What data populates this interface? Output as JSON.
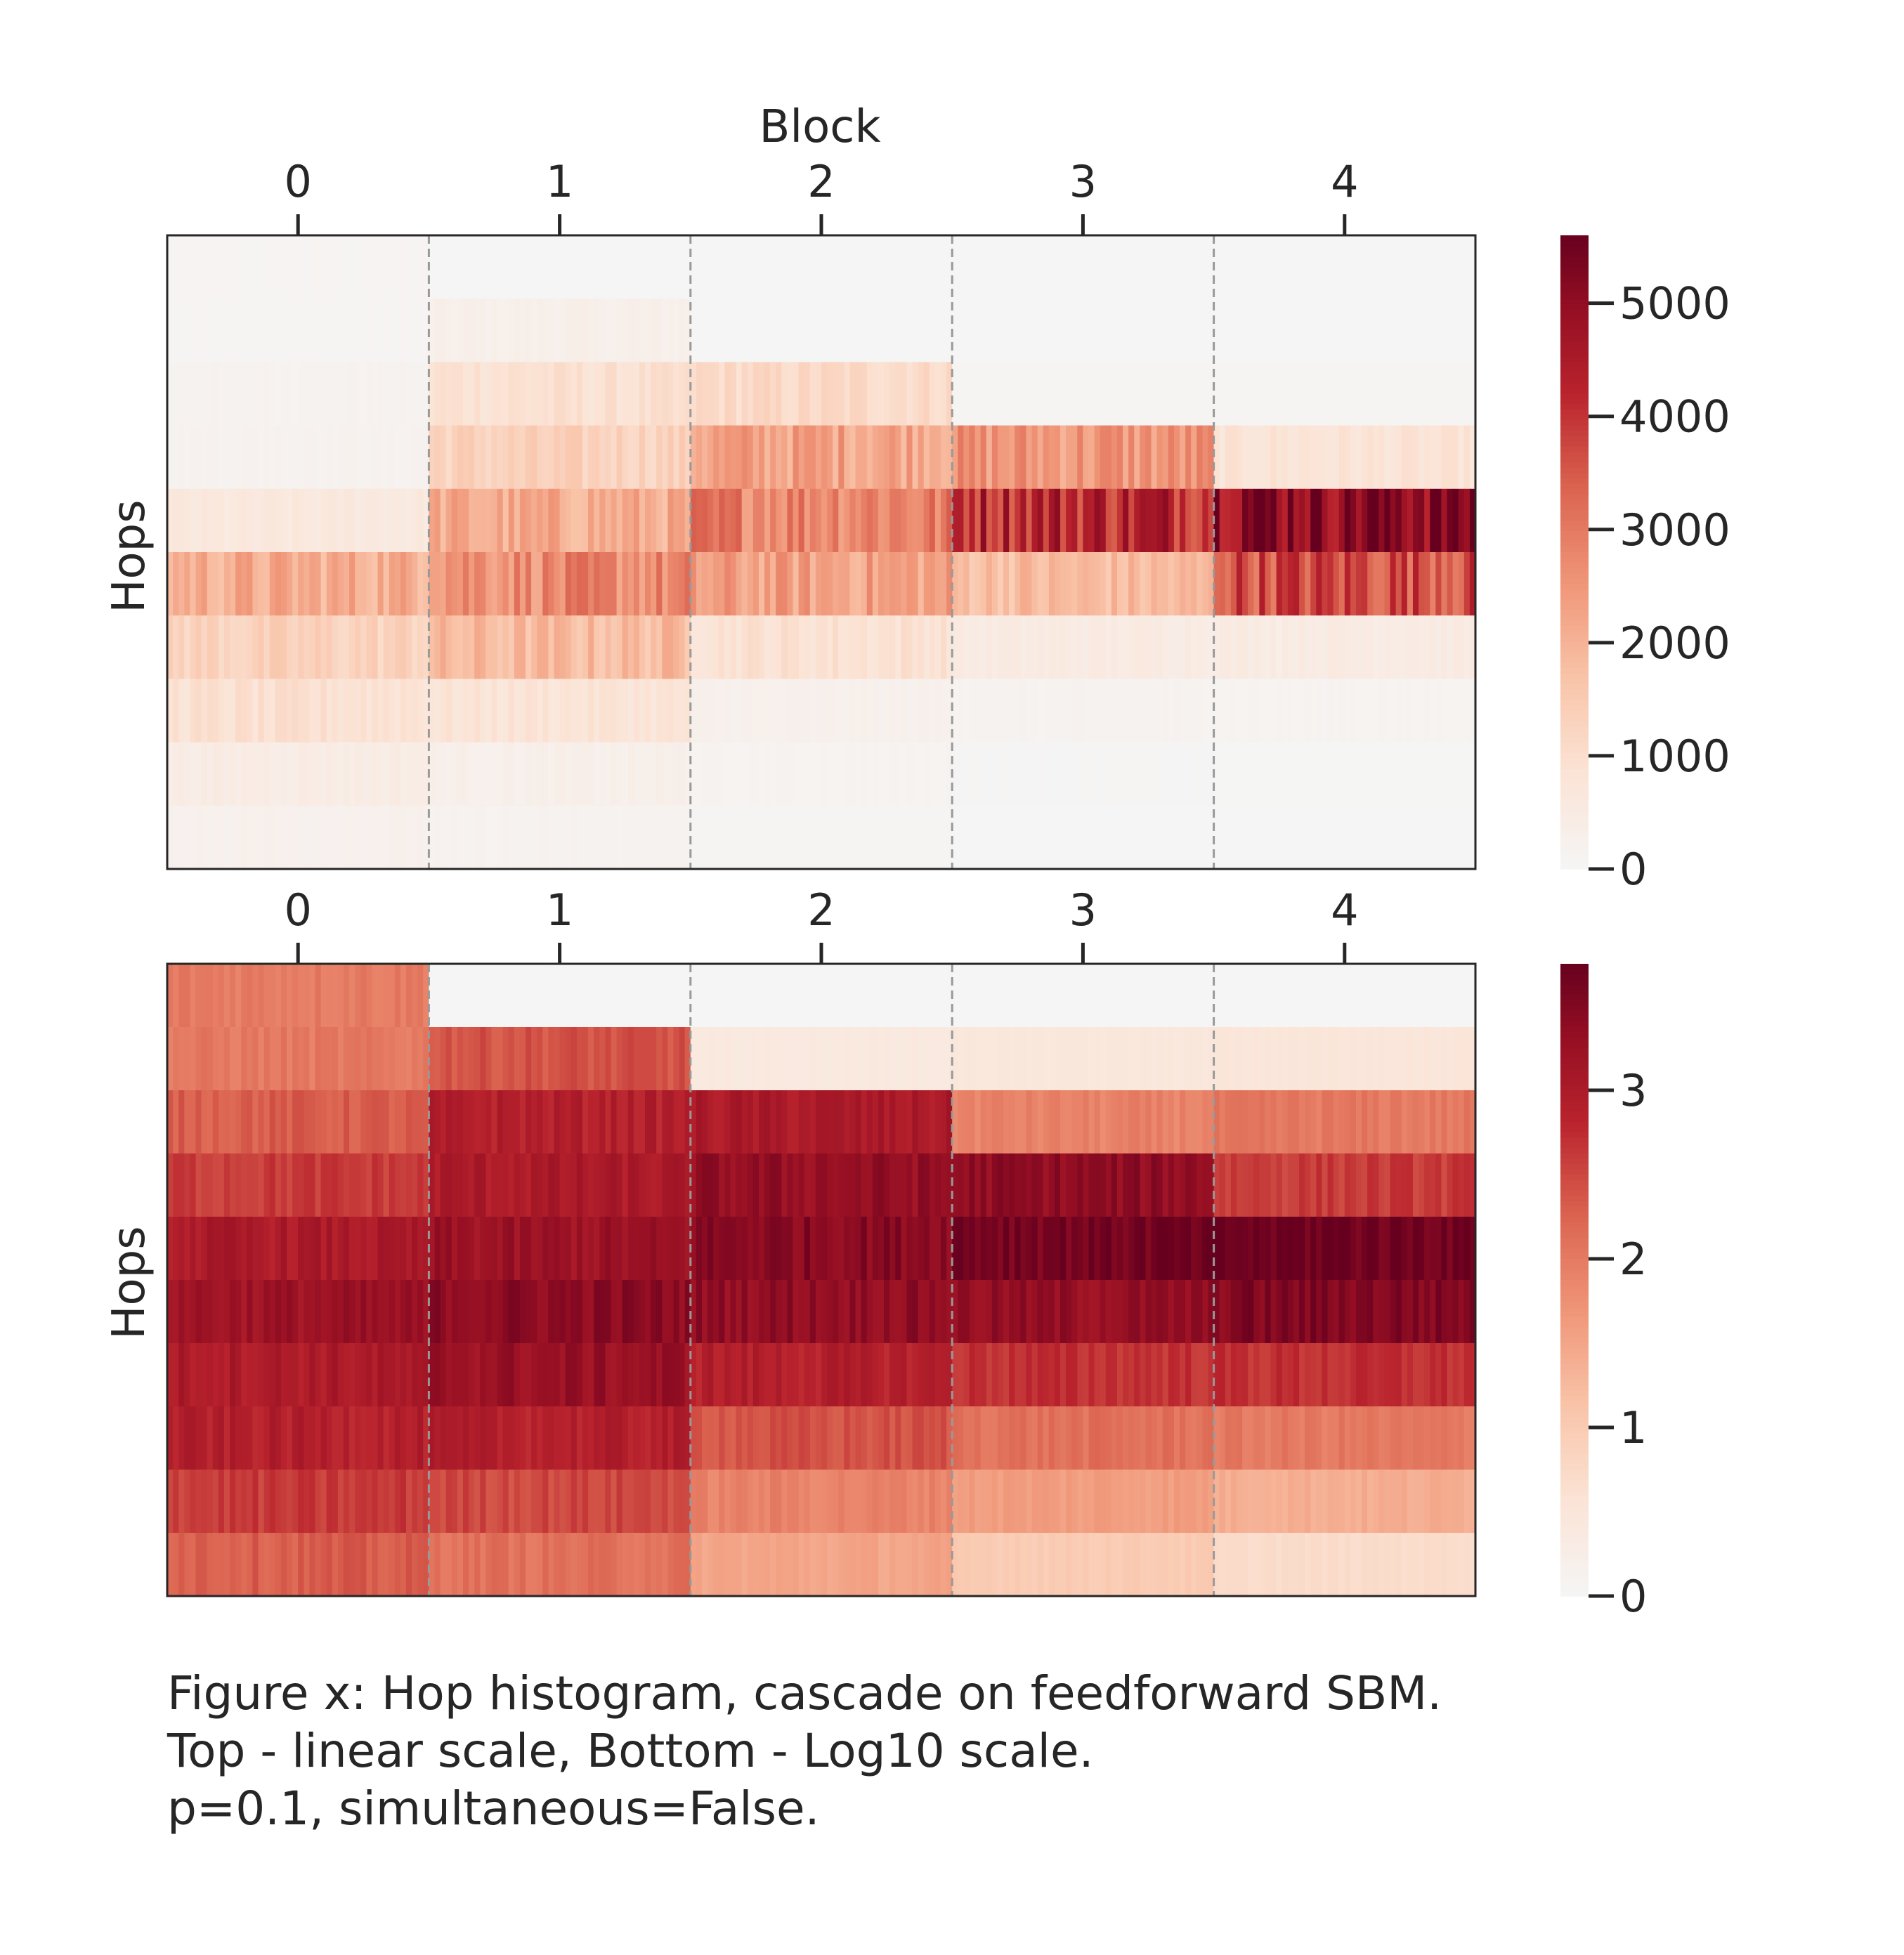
{
  "chart_data": [
    {
      "type": "heatmap",
      "panel": "top",
      "scale": "linear",
      "colormap": "Reds (light gray to dark red)",
      "x_title": "Block",
      "x_ticks": [
        "0",
        "1",
        "2",
        "3",
        "4"
      ],
      "ylabel": "Hops",
      "rows": 10,
      "vmin": 0,
      "vmax": 5600,
      "colorbar_ticks": [
        "0",
        "1000",
        "2000",
        "3000",
        "4000",
        "5000"
      ],
      "block_boundaries": "dashed gray lines",
      "values": [
        [
          80,
          0,
          0,
          0,
          0
        ],
        [
          70,
          300,
          0,
          0,
          0
        ],
        [
          150,
          900,
          1100,
          60,
          60
        ],
        [
          180,
          1300,
          2300,
          2500,
          800
        ],
        [
          600,
          2100,
          2900,
          4300,
          5300
        ],
        [
          2100,
          2700,
          2300,
          1800,
          3700
        ],
        [
          1300,
          1800,
          900,
          500,
          500
        ],
        [
          900,
          800,
          250,
          150,
          120
        ],
        [
          450,
          300,
          120,
          40,
          20
        ],
        [
          250,
          150,
          60,
          10,
          5
        ]
      ]
    },
    {
      "type": "heatmap",
      "panel": "bottom",
      "scale": "log10",
      "colormap": "Reds (light gray to dark red)",
      "x_ticks": [
        "0",
        "1",
        "2",
        "3",
        "4"
      ],
      "ylabel": "Hops",
      "rows": 10,
      "vmin": 0,
      "vmax": 3.75,
      "colorbar_ticks": [
        "0",
        "1",
        "2",
        "3"
      ],
      "block_boundaries": "dashed gray lines",
      "values": [
        [
          2.0,
          0.0,
          0.0,
          0.0,
          0.0
        ],
        [
          2.0,
          2.4,
          0.4,
          0.45,
          0.5
        ],
        [
          2.3,
          2.9,
          3.0,
          1.9,
          2.0
        ],
        [
          2.6,
          3.0,
          3.3,
          3.35,
          2.6
        ],
        [
          3.0,
          3.2,
          3.45,
          3.65,
          3.7
        ],
        [
          3.2,
          3.4,
          3.35,
          3.3,
          3.5
        ],
        [
          3.0,
          3.25,
          2.9,
          2.7,
          2.7
        ],
        [
          2.9,
          2.9,
          2.4,
          2.1,
          2.0
        ],
        [
          2.6,
          2.5,
          1.9,
          1.6,
          1.4
        ],
        [
          2.3,
          2.1,
          1.5,
          1.0,
          0.7
        ]
      ]
    }
  ],
  "caption": {
    "line1": "Figure x: Hop histogram, cascade on feedforward SBM.",
    "line2": "Top - linear scale, Bottom - Log10 scale.",
    "line3": "p=0.1, simultaneous=False."
  },
  "colors": {
    "zero": "#f5f5f5",
    "low": "#fbd9c4",
    "mid": "#e5775d",
    "high": "#b2182b",
    "max": "#67001f",
    "grid_dashed": "#999999",
    "frame": "#262626"
  }
}
